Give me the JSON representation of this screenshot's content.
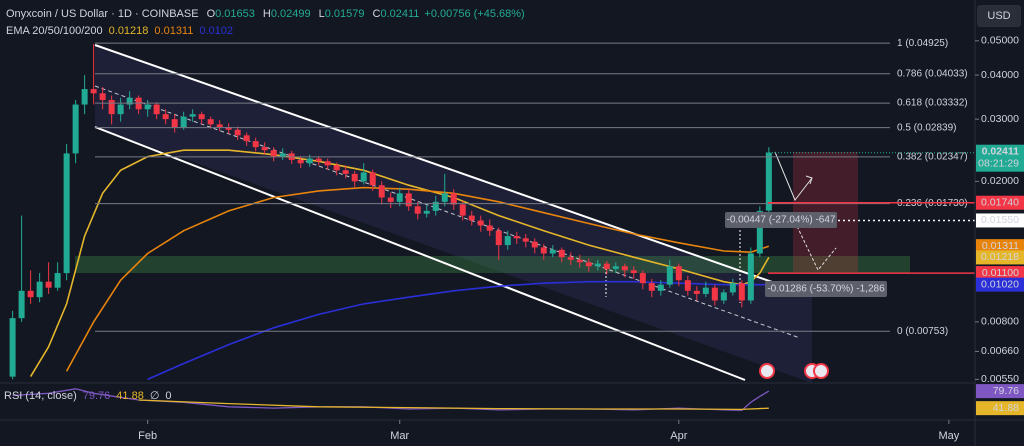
{
  "header": {
    "symbol": "Onyxcoin / US Dollar · 1D · COINBASE",
    "ohlc_labels": [
      "O",
      "H",
      "L",
      "C"
    ],
    "change": "+0.00756 (+45.68%)",
    "currency": "USD"
  },
  "chart_data": {
    "type": "candlestick",
    "log_scale": true,
    "up_color": "#22ab94",
    "down_color": "#f23645",
    "x": [
      16,
      17,
      18,
      19,
      20,
      21,
      22,
      23,
      24,
      25,
      26,
      27,
      28,
      29,
      30,
      31,
      32,
      33,
      34,
      35,
      36,
      37,
      38,
      39,
      40,
      41,
      42,
      43,
      44,
      45,
      46,
      47,
      48,
      49,
      50,
      51,
      52,
      53,
      54,
      55,
      56,
      57,
      58,
      59,
      60,
      61,
      62,
      63,
      64,
      65,
      66,
      67,
      68,
      69,
      70,
      71,
      72,
      73,
      74,
      75,
      76,
      77,
      78,
      79,
      80,
      81,
      82,
      83,
      84,
      85,
      86,
      87,
      88,
      89,
      90,
      91,
      92,
      93,
      94,
      95,
      96,
      97,
      98,
      99,
      100
    ],
    "ohlc": [
      [
        0.0056,
        0.0086,
        0.0055,
        0.0082
      ],
      [
        0.0082,
        0.016,
        0.008,
        0.0098
      ],
      [
        0.0098,
        0.0112,
        0.009,
        0.0094
      ],
      [
        0.0094,
        0.011,
        0.0091,
        0.0104
      ],
      [
        0.0104,
        0.0118,
        0.0096,
        0.01
      ],
      [
        0.01,
        0.0118,
        0.0098,
        0.011
      ],
      [
        0.011,
        0.0255,
        0.0105,
        0.024
      ],
      [
        0.024,
        0.034,
        0.0225,
        0.033
      ],
      [
        0.033,
        0.04,
        0.031,
        0.0365
      ],
      [
        0.0365,
        0.049,
        0.033,
        0.0355
      ],
      [
        0.0355,
        0.037,
        0.032,
        0.034
      ],
      [
        0.034,
        0.035,
        0.029,
        0.031
      ],
      [
        0.031,
        0.0345,
        0.0295,
        0.033
      ],
      [
        0.033,
        0.036,
        0.032,
        0.0345
      ],
      [
        0.0345,
        0.035,
        0.031,
        0.032
      ],
      [
        0.032,
        0.034,
        0.0305,
        0.033
      ],
      [
        0.033,
        0.0335,
        0.03,
        0.031
      ],
      [
        0.031,
        0.032,
        0.029,
        0.03
      ],
      [
        0.03,
        0.031,
        0.0275,
        0.0285
      ],
      [
        0.0285,
        0.0315,
        0.028,
        0.0305
      ],
      [
        0.0305,
        0.032,
        0.0295,
        0.031
      ],
      [
        0.031,
        0.0315,
        0.029,
        0.03
      ],
      [
        0.03,
        0.0305,
        0.0282,
        0.029
      ],
      [
        0.029,
        0.0298,
        0.0278,
        0.0285
      ],
      [
        0.0285,
        0.0292,
        0.0272,
        0.028
      ],
      [
        0.028,
        0.0286,
        0.0262,
        0.027
      ],
      [
        0.027,
        0.0275,
        0.0252,
        0.026
      ],
      [
        0.026,
        0.0266,
        0.0243,
        0.025
      ],
      [
        0.025,
        0.0258,
        0.0238,
        0.0245
      ],
      [
        0.0245,
        0.025,
        0.0228,
        0.0235
      ],
      [
        0.0235,
        0.0248,
        0.023,
        0.024
      ],
      [
        0.024,
        0.0244,
        0.0224,
        0.023
      ],
      [
        0.023,
        0.0236,
        0.0218,
        0.0225
      ],
      [
        0.0225,
        0.0238,
        0.022,
        0.0232
      ],
      [
        0.0232,
        0.0236,
        0.0222,
        0.0228
      ],
      [
        0.0228,
        0.0232,
        0.0216,
        0.0222
      ],
      [
        0.0222,
        0.0226,
        0.0208,
        0.0215
      ],
      [
        0.0215,
        0.0222,
        0.0204,
        0.021
      ],
      [
        0.021,
        0.0214,
        0.0193,
        0.02
      ],
      [
        0.02,
        0.0225,
        0.0196,
        0.0212
      ],
      [
        0.0212,
        0.0216,
        0.0188,
        0.0195
      ],
      [
        0.0195,
        0.02,
        0.0172,
        0.018
      ],
      [
        0.018,
        0.0186,
        0.0168,
        0.0175
      ],
      [
        0.0175,
        0.0192,
        0.017,
        0.0185
      ],
      [
        0.0185,
        0.019,
        0.0165,
        0.017
      ],
      [
        0.017,
        0.0175,
        0.0156,
        0.0162
      ],
      [
        0.0162,
        0.0172,
        0.0158,
        0.0165
      ],
      [
        0.0165,
        0.0182,
        0.016,
        0.0175
      ],
      [
        0.0175,
        0.021,
        0.017,
        0.0185
      ],
      [
        0.0185,
        0.019,
        0.0166,
        0.0172
      ],
      [
        0.0172,
        0.0176,
        0.0155,
        0.016
      ],
      [
        0.016,
        0.0165,
        0.015,
        0.0155
      ],
      [
        0.0155,
        0.016,
        0.0144,
        0.015
      ],
      [
        0.015,
        0.0156,
        0.014,
        0.0145
      ],
      [
        0.0145,
        0.0148,
        0.012,
        0.0132
      ],
      [
        0.0132,
        0.0145,
        0.0128,
        0.014
      ],
      [
        0.014,
        0.0144,
        0.0133,
        0.0138
      ],
      [
        0.0138,
        0.0142,
        0.013,
        0.0135
      ],
      [
        0.0135,
        0.0138,
        0.0125,
        0.013
      ],
      [
        0.013,
        0.0133,
        0.012,
        0.0125
      ],
      [
        0.0125,
        0.0132,
        0.0122,
        0.0128
      ],
      [
        0.0128,
        0.013,
        0.0118,
        0.0122
      ],
      [
        0.0122,
        0.0126,
        0.0116,
        0.012
      ],
      [
        0.012,
        0.0124,
        0.0114,
        0.0118
      ],
      [
        0.0118,
        0.0121,
        0.0111,
        0.0115
      ],
      [
        0.0115,
        0.012,
        0.0112,
        0.0117
      ],
      [
        0.0117,
        0.0119,
        0.0109,
        0.0113
      ],
      [
        0.0113,
        0.0118,
        0.011,
        0.0115
      ],
      [
        0.0115,
        0.0117,
        0.0107,
        0.0112
      ],
      [
        0.0112,
        0.0115,
        0.0106,
        0.011
      ],
      [
        0.011,
        0.0112,
        0.0099,
        0.0103
      ],
      [
        0.0103,
        0.0106,
        0.0094,
        0.0098
      ],
      [
        0.0098,
        0.0105,
        0.0095,
        0.0102
      ],
      [
        0.0102,
        0.012,
        0.01,
        0.0115
      ],
      [
        0.0115,
        0.0117,
        0.0101,
        0.0105
      ],
      [
        0.0105,
        0.0108,
        0.0095,
        0.0098
      ],
      [
        0.0098,
        0.0101,
        0.0092,
        0.0096
      ],
      [
        0.0096,
        0.0104,
        0.0094,
        0.01
      ],
      [
        0.01,
        0.0102,
        0.0089,
        0.0092
      ],
      [
        0.0092,
        0.0099,
        0.009,
        0.0097
      ],
      [
        0.0097,
        0.0106,
        0.0095,
        0.0103
      ],
      [
        0.0103,
        0.0105,
        0.0088,
        0.0092
      ],
      [
        0.0092,
        0.013,
        0.009,
        0.0125
      ],
      [
        0.0125,
        0.017,
        0.0122,
        0.0165
      ],
      [
        0.01653,
        0.02499,
        0.01579,
        0.02411
      ]
    ],
    "xlim": [
      14.6,
      122.9
    ],
    "xticks": [
      {
        "value": 31,
        "label": "Feb"
      },
      {
        "value": 59,
        "label": "Mar"
      },
      {
        "value": 90,
        "label": "Apr"
      },
      {
        "value": 120,
        "label": "May"
      }
    ],
    "ylim": [
      0.0052,
      0.054
    ],
    "yticks": [
      {
        "value": 0.05,
        "label": "0.05000"
      },
      {
        "value": 0.04,
        "label": "0.04000"
      },
      {
        "value": 0.03,
        "label": "0.03000"
      },
      {
        "value": 0.02,
        "label": "0.02000"
      },
      {
        "value": 0.008,
        "label": "0.00800"
      },
      {
        "value": 0.0066,
        "label": "0.00660"
      },
      {
        "value": 0.0055,
        "label": "0.00550"
      }
    ],
    "fib_levels": [
      {
        "value": 0.04925,
        "label": "1 (0.04925)"
      },
      {
        "value": 0.04033,
        "label": "0.786 (0.04033)"
      },
      {
        "value": 0.03332,
        "label": "0.618 (0.03332)"
      },
      {
        "value": 0.02839,
        "label": "0.5 (0.02839)"
      },
      {
        "value": 0.02347,
        "label": "0.382 (0.02347)"
      },
      {
        "value": 0.0173,
        "label": "0.236 (0.01730)"
      },
      {
        "value": 0.00753,
        "label": "0 (0.00753)"
      }
    ],
    "ema_label": "EMA 20/50/100/200",
    "ema": [
      {
        "color": "#e5b62a",
        "x": [
          18,
          20,
          22,
          24,
          26,
          28,
          31,
          35,
          40,
          45,
          50,
          55,
          60,
          65,
          70,
          75,
          80,
          85,
          90,
          95,
          97,
          98,
          99,
          100
        ],
        "values": [
          0.0056,
          0.0068,
          0.009,
          0.014,
          0.0185,
          0.0215,
          0.0235,
          0.0245,
          0.0245,
          0.0238,
          0.0228,
          0.0215,
          0.0195,
          0.018,
          0.016,
          0.0145,
          0.0132,
          0.0122,
          0.0113,
          0.0104,
          0.0102,
          0.0104,
          0.011,
          0.01218
        ]
      },
      {
        "color": "#e8840c",
        "x": [
          22,
          25,
          28,
          31,
          35,
          40,
          45,
          50,
          55,
          60,
          65,
          70,
          75,
          80,
          85,
          90,
          95,
          98,
          100
        ],
        "values": [
          0.0058,
          0.008,
          0.0105,
          0.0125,
          0.0145,
          0.0165,
          0.018,
          0.0188,
          0.0192,
          0.019,
          0.0185,
          0.0175,
          0.0163,
          0.0152,
          0.0142,
          0.0134,
          0.0127,
          0.0126,
          0.01311
        ]
      },
      {
        "color": "#2a2fd8",
        "x": [
          31,
          35,
          40,
          45,
          50,
          55,
          60,
          65,
          70,
          75,
          80,
          85,
          90,
          95,
          100
        ],
        "values": [
          0.0055,
          0.0061,
          0.0069,
          0.0077,
          0.0084,
          0.009,
          0.0094,
          0.0098,
          0.0101,
          0.0103,
          0.0104,
          0.0104,
          0.0103,
          0.0102,
          0.0102
        ]
      }
    ],
    "price_tags": [
      {
        "value": 0.0174,
        "label": "0.01740",
        "color": "#f23645",
        "line": "solid"
      },
      {
        "value": 0.0155,
        "label": "0.01550",
        "color": "#ffffff",
        "line": "dotted"
      },
      {
        "value": 0.01311,
        "label": "0.01311",
        "color": "#e8840c"
      },
      {
        "value": 0.01218,
        "label": "0.01218",
        "color": "#e5b62a"
      },
      {
        "value": 0.011,
        "label": "0.01100",
        "color": "#f23645",
        "line": "solid"
      },
      {
        "value": 0.0102,
        "label": "0.01020",
        "color": "#2a2fd8"
      }
    ],
    "countdown": "08:21:29",
    "annotations": [
      "-0.00447 (-27.04%) -647",
      "-0.01286 (-53.70%) -1,286"
    ],
    "rsi": {
      "label": "RSI (14, close)",
      "legend_values": [
        "79.76",
        "41.88",
        "∅",
        "0"
      ],
      "ylim": [
        20,
        100
      ],
      "series": [
        {
          "color": "#7e57c2",
          "x": [
            16,
            20,
            23,
            25,
            30,
            35,
            40,
            45,
            50,
            55,
            60,
            65,
            70,
            75,
            80,
            85,
            90,
            95,
            97,
            98,
            99,
            100
          ],
          "values": [
            70,
            75,
            85,
            75,
            60,
            55,
            45,
            42,
            45,
            45,
            40,
            42,
            38,
            40,
            40,
            38,
            42,
            38,
            37,
            55,
            68,
            79.76
          ]
        },
        {
          "color": "#e5b62a",
          "x": [
            30,
            40,
            50,
            60,
            70,
            80,
            90,
            97,
            100
          ],
          "values": [
            60,
            52,
            45,
            43,
            41,
            40,
            40,
            39,
            41.88
          ]
        }
      ],
      "tags": [
        {
          "value": 79.76,
          "label": "79.76",
          "color": "#7e57c2"
        },
        {
          "value": 41.88,
          "label": "41.88",
          "color": "#e5b62a"
        }
      ]
    }
  }
}
